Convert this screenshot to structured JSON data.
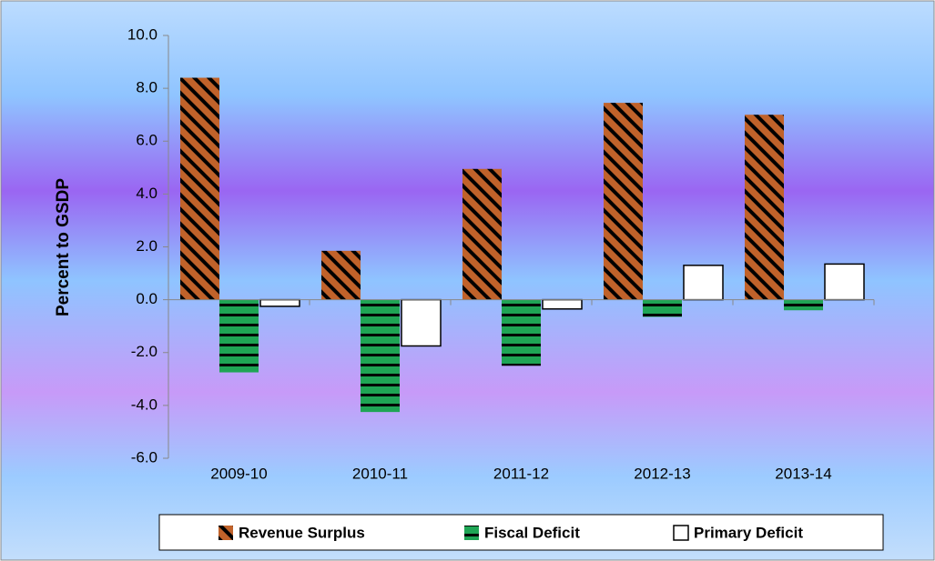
{
  "chart_data": {
    "type": "bar",
    "y_label": "Percent to GSDP",
    "categories": [
      "2009-10",
      "2010-11",
      "2011-12",
      "2012-13",
      "2013-14"
    ],
    "series": [
      {
        "name": "Revenue Surplus",
        "color": "#c0622a",
        "values": [
          8.4,
          1.85,
          4.95,
          7.45,
          7.0
        ]
      },
      {
        "name": "Fiscal Deficit",
        "color": "#1fa555",
        "values": [
          -2.75,
          -4.25,
          -2.5,
          -0.65,
          -0.4
        ]
      },
      {
        "name": "Primary Deficit",
        "color": "#ffffff",
        "values": [
          -0.25,
          -1.75,
          -0.35,
          1.3,
          1.35
        ]
      }
    ],
    "ylim": [
      -6,
      10
    ],
    "yticks": [
      {
        "value": -6,
        "label": "-6.0"
      },
      {
        "value": -4,
        "label": "-4.0"
      },
      {
        "value": -2,
        "label": "-2.0"
      },
      {
        "value": 0,
        "label": "0.0"
      },
      {
        "value": 2,
        "label": "2.0"
      },
      {
        "value": 4,
        "label": "4.0"
      },
      {
        "value": 6,
        "label": "6.0"
      },
      {
        "value": 8,
        "label": "8.0"
      },
      {
        "value": 10,
        "label": "10.0"
      }
    ],
    "legend": "bottom"
  }
}
